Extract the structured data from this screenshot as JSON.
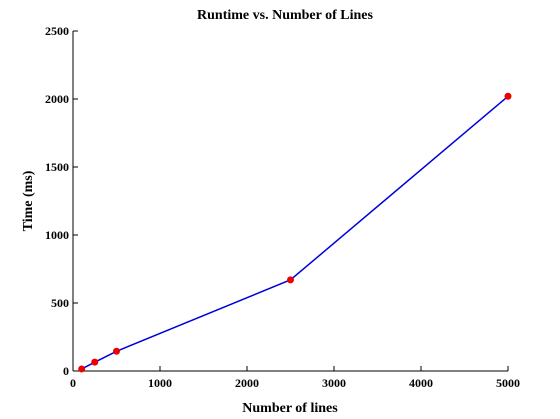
{
  "chart_data": {
    "type": "line",
    "title": "Runtime vs. Number of Lines",
    "xlabel": "Number of lines",
    "ylabel": "Time (ms)",
    "xlim": [
      0,
      5000
    ],
    "ylim": [
      0,
      2500
    ],
    "xticks": [
      "0",
      "1000",
      "2000",
      "3000",
      "4000",
      "5000"
    ],
    "yticks": [
      "0",
      "500",
      "1000",
      "1500",
      "2000",
      "2500"
    ],
    "grid": false,
    "series": [
      {
        "x": [
          100,
          250,
          500,
          2500,
          5000
        ],
        "y": [
          15,
          65,
          145,
          670,
          2020
        ],
        "line_color": "#0000dd",
        "marker_color": "#ee0000"
      }
    ]
  }
}
